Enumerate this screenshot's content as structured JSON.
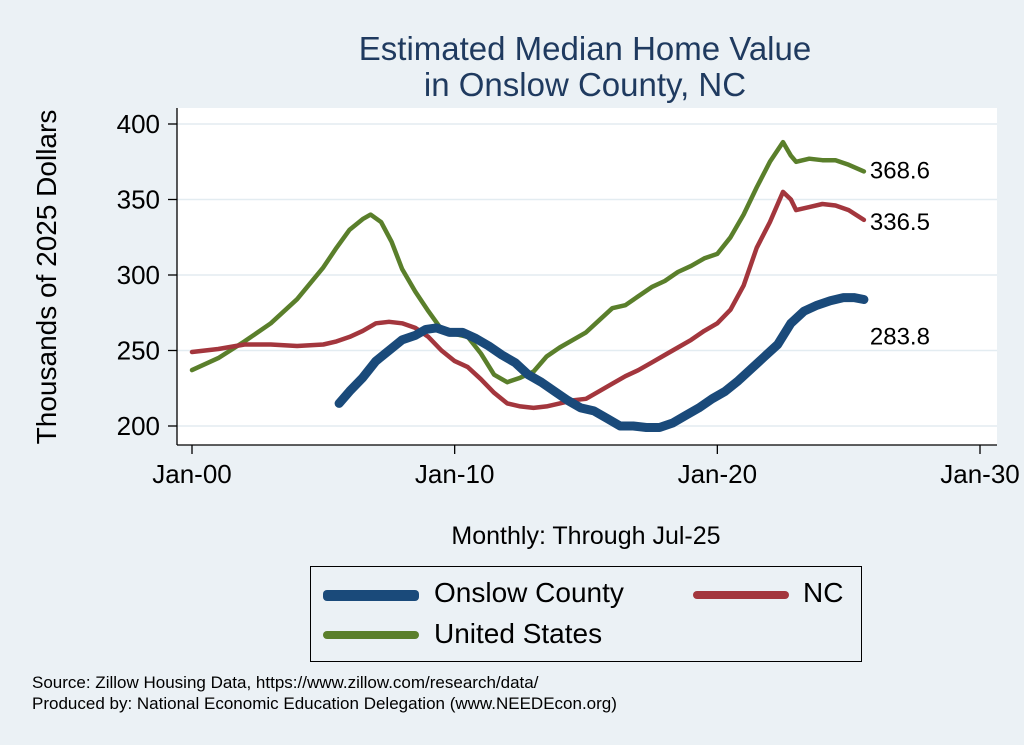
{
  "chart_data": {
    "type": "line",
    "title": [
      "Estimated Median Home Value",
      "in Onslow County, NC"
    ],
    "ylabel": "Thousands of 2025 Dollars",
    "xlabel": "Monthly: Through Jul-25",
    "ylim": [
      190,
      410
    ],
    "yticks": [
      200,
      250,
      300,
      350,
      400
    ],
    "xlim": [
      2000,
      2030
    ],
    "xticks": [
      {
        "value": 2000,
        "label": "Jan-00"
      },
      {
        "value": 2010,
        "label": "Jan-10"
      },
      {
        "value": 2020,
        "label": "Jan-20"
      },
      {
        "value": 2030,
        "label": "Jan-30"
      }
    ],
    "grid": true,
    "legend_position": "bottom",
    "series": [
      {
        "name": "Onslow County",
        "color": "#1a4a7a",
        "end_label": "283.8",
        "points": [
          [
            2005.6,
            215
          ],
          [
            2006.0,
            223
          ],
          [
            2006.5,
            232
          ],
          [
            2007.0,
            243
          ],
          [
            2007.5,
            250
          ],
          [
            2008.0,
            257
          ],
          [
            2008.5,
            260
          ],
          [
            2008.9,
            264
          ],
          [
            2009.3,
            265
          ],
          [
            2009.8,
            262
          ],
          [
            2010.3,
            262
          ],
          [
            2010.8,
            258
          ],
          [
            2011.3,
            253
          ],
          [
            2011.8,
            247
          ],
          [
            2012.3,
            242
          ],
          [
            2012.8,
            234
          ],
          [
            2013.3,
            229
          ],
          [
            2013.8,
            223
          ],
          [
            2014.3,
            217
          ],
          [
            2014.8,
            212
          ],
          [
            2015.3,
            210
          ],
          [
            2015.8,
            205
          ],
          [
            2016.3,
            200
          ],
          [
            2016.8,
            200
          ],
          [
            2017.3,
            199
          ],
          [
            2017.8,
            199
          ],
          [
            2018.3,
            202
          ],
          [
            2018.8,
            207
          ],
          [
            2019.3,
            212
          ],
          [
            2019.8,
            218
          ],
          [
            2020.3,
            223
          ],
          [
            2020.8,
            230
          ],
          [
            2021.3,
            238
          ],
          [
            2021.8,
            246
          ],
          [
            2022.3,
            254
          ],
          [
            2022.8,
            268
          ],
          [
            2023.3,
            276
          ],
          [
            2023.8,
            280
          ],
          [
            2024.3,
            283
          ],
          [
            2024.8,
            285
          ],
          [
            2025.2,
            285
          ],
          [
            2025.58,
            283.8
          ]
        ]
      },
      {
        "name": "NC",
        "color": "#a3363d",
        "end_label": "336.5",
        "points": [
          [
            2000.0,
            249
          ],
          [
            2001.0,
            251
          ],
          [
            2002.0,
            254
          ],
          [
            2003.0,
            254
          ],
          [
            2004.0,
            253
          ],
          [
            2005.0,
            254
          ],
          [
            2005.5,
            256
          ],
          [
            2006.0,
            259
          ],
          [
            2006.5,
            263
          ],
          [
            2007.0,
            268
          ],
          [
            2007.5,
            269
          ],
          [
            2008.0,
            268
          ],
          [
            2008.5,
            265
          ],
          [
            2009.0,
            259
          ],
          [
            2009.5,
            250
          ],
          [
            2010.0,
            243
          ],
          [
            2010.5,
            239
          ],
          [
            2011.0,
            231
          ],
          [
            2011.5,
            222
          ],
          [
            2012.0,
            215
          ],
          [
            2012.5,
            213
          ],
          [
            2013.0,
            212
          ],
          [
            2013.5,
            213
          ],
          [
            2014.0,
            215
          ],
          [
            2014.5,
            217
          ],
          [
            2015.0,
            218
          ],
          [
            2015.5,
            223
          ],
          [
            2016.0,
            228
          ],
          [
            2016.5,
            233
          ],
          [
            2017.0,
            237
          ],
          [
            2017.5,
            242
          ],
          [
            2018.0,
            247
          ],
          [
            2018.5,
            252
          ],
          [
            2019.0,
            257
          ],
          [
            2019.5,
            263
          ],
          [
            2020.0,
            268
          ],
          [
            2020.5,
            277
          ],
          [
            2021.0,
            293
          ],
          [
            2021.5,
            318
          ],
          [
            2022.0,
            335
          ],
          [
            2022.5,
            355
          ],
          [
            2022.8,
            350
          ],
          [
            2023.0,
            343
          ],
          [
            2023.5,
            345
          ],
          [
            2024.0,
            347
          ],
          [
            2024.5,
            346
          ],
          [
            2025.0,
            343
          ],
          [
            2025.58,
            336.5
          ]
        ]
      },
      {
        "name": "United States",
        "color": "#5a7f2b",
        "end_label": "368.6",
        "points": [
          [
            2000.0,
            237
          ],
          [
            2001.0,
            245
          ],
          [
            2002.0,
            256
          ],
          [
            2003.0,
            268
          ],
          [
            2004.0,
            284
          ],
          [
            2005.0,
            305
          ],
          [
            2005.5,
            318
          ],
          [
            2006.0,
            330
          ],
          [
            2006.5,
            337
          ],
          [
            2006.8,
            340
          ],
          [
            2007.2,
            335
          ],
          [
            2007.6,
            322
          ],
          [
            2008.0,
            304
          ],
          [
            2008.5,
            289
          ],
          [
            2009.0,
            276
          ],
          [
            2009.5,
            264
          ],
          [
            2010.0,
            261
          ],
          [
            2010.5,
            259
          ],
          [
            2011.0,
            248
          ],
          [
            2011.5,
            234
          ],
          [
            2012.0,
            229
          ],
          [
            2012.5,
            232
          ],
          [
            2013.0,
            236
          ],
          [
            2013.5,
            246
          ],
          [
            2014.0,
            252
          ],
          [
            2014.5,
            257
          ],
          [
            2015.0,
            262
          ],
          [
            2015.5,
            270
          ],
          [
            2016.0,
            278
          ],
          [
            2016.5,
            280
          ],
          [
            2017.0,
            286
          ],
          [
            2017.5,
            292
          ],
          [
            2018.0,
            296
          ],
          [
            2018.5,
            302
          ],
          [
            2019.0,
            306
          ],
          [
            2019.5,
            311
          ],
          [
            2020.0,
            314
          ],
          [
            2020.5,
            325
          ],
          [
            2021.0,
            340
          ],
          [
            2021.5,
            358
          ],
          [
            2022.0,
            375
          ],
          [
            2022.5,
            388
          ],
          [
            2022.8,
            379
          ],
          [
            2023.0,
            375
          ],
          [
            2023.5,
            377
          ],
          [
            2024.0,
            376
          ],
          [
            2024.5,
            376
          ],
          [
            2025.0,
            373
          ],
          [
            2025.58,
            368.6
          ]
        ]
      }
    ]
  },
  "legend": [
    {
      "label": "Onslow County",
      "color": "#1a4a7a"
    },
    {
      "label": "NC",
      "color": "#a3363d"
    },
    {
      "label": "United States",
      "color": "#5a7f2b"
    }
  ],
  "source": "Source: Zillow Housing Data, https://www.zillow.com/research/data/",
  "produced_by": "Produced by: National Economic Education Delegation (www.NEEDEcon.org)"
}
